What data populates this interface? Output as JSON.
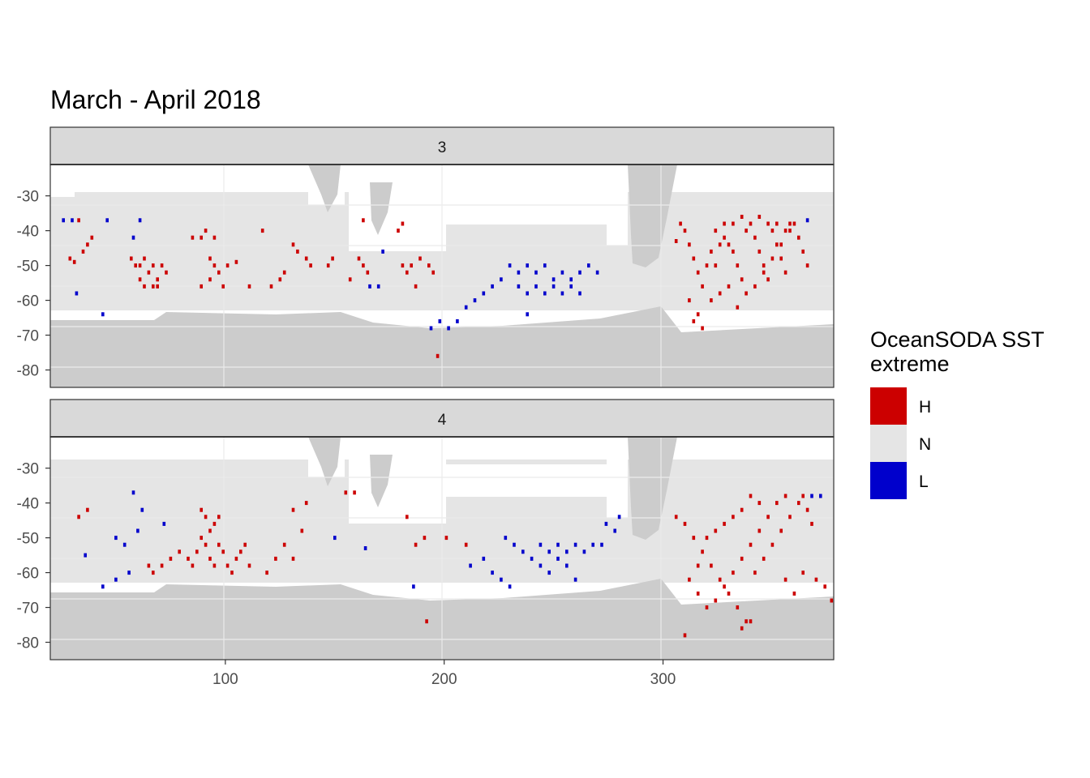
{
  "chart_data": {
    "type": "heatmap",
    "title": "March - April 2018",
    "xlabel": "",
    "ylabel": "",
    "xlim": [
      20,
      378
    ],
    "ylim": [
      -85,
      -21
    ],
    "x_ticks": [
      100,
      200,
      300
    ],
    "y_ticks": [
      -30,
      -40,
      -50,
      -60,
      -70,
      -80
    ],
    "grid": true,
    "legend": {
      "title": "OceanSODA SST extreme",
      "position": "right",
      "categories": [
        {
          "label": "H",
          "color": "#cc0000"
        },
        {
          "label": "N",
          "color": "#e5e5e5"
        },
        {
          "label": "L",
          "color": "#0000cc"
        }
      ]
    },
    "panels": [
      {
        "label": "3",
        "cells_H": [
          [
            33,
            -37
          ],
          [
            35,
            -46
          ],
          [
            37,
            -44
          ],
          [
            39,
            -42
          ],
          [
            29,
            -48
          ],
          [
            31,
            -49
          ],
          [
            57,
            -48
          ],
          [
            59,
            -50
          ],
          [
            61,
            -50
          ],
          [
            63,
            -48
          ],
          [
            65,
            -52
          ],
          [
            67,
            -50
          ],
          [
            69,
            -54
          ],
          [
            71,
            -50
          ],
          [
            73,
            -52
          ],
          [
            61,
            -54
          ],
          [
            63,
            -56
          ],
          [
            67,
            -56
          ],
          [
            69,
            -56
          ],
          [
            85,
            -42
          ],
          [
            89,
            -42
          ],
          [
            91,
            -40
          ],
          [
            95,
            -42
          ],
          [
            93,
            -48
          ],
          [
            95,
            -50
          ],
          [
            97,
            -52
          ],
          [
            99,
            -56
          ],
          [
            101,
            -50
          ],
          [
            105,
            -49
          ],
          [
            89,
            -56
          ],
          [
            93,
            -54
          ],
          [
            111,
            -56
          ],
          [
            121,
            -56
          ],
          [
            125,
            -54
          ],
          [
            127,
            -52
          ],
          [
            117,
            -40
          ],
          [
            131,
            -44
          ],
          [
            133,
            -46
          ],
          [
            137,
            -48
          ],
          [
            139,
            -50
          ],
          [
            147,
            -50
          ],
          [
            149,
            -48
          ],
          [
            161,
            -48
          ],
          [
            163,
            -50
          ],
          [
            165,
            -52
          ],
          [
            157,
            -54
          ],
          [
            181,
            -50
          ],
          [
            183,
            -52
          ],
          [
            185,
            -50
          ],
          [
            187,
            -56
          ],
          [
            189,
            -48
          ],
          [
            193,
            -50
          ],
          [
            195,
            -52
          ],
          [
            179,
            -40
          ],
          [
            181,
            -38
          ],
          [
            197,
            -76
          ],
          [
            163,
            -37
          ],
          [
            306,
            -43
          ],
          [
            308,
            -38
          ],
          [
            310,
            -40
          ],
          [
            312,
            -44
          ],
          [
            314,
            -48
          ],
          [
            316,
            -52
          ],
          [
            318,
            -56
          ],
          [
            320,
            -50
          ],
          [
            322,
            -46
          ],
          [
            324,
            -50
          ],
          [
            326,
            -44
          ],
          [
            328,
            -42
          ],
          [
            330,
            -44
          ],
          [
            332,
            -46
          ],
          [
            334,
            -50
          ],
          [
            336,
            -54
          ],
          [
            338,
            -40
          ],
          [
            340,
            -38
          ],
          [
            342,
            -42
          ],
          [
            344,
            -46
          ],
          [
            346,
            -50
          ],
          [
            348,
            -54
          ],
          [
            350,
            -40
          ],
          [
            352,
            -44
          ],
          [
            354,
            -48
          ],
          [
            356,
            -52
          ],
          [
            358,
            -40
          ],
          [
            360,
            -38
          ],
          [
            362,
            -42
          ],
          [
            364,
            -46
          ],
          [
            366,
            -50
          ],
          [
            314,
            -66
          ],
          [
            318,
            -68
          ],
          [
            322,
            -60
          ],
          [
            326,
            -58
          ],
          [
            330,
            -56
          ],
          [
            334,
            -62
          ],
          [
            338,
            -58
          ],
          [
            342,
            -56
          ],
          [
            346,
            -52
          ],
          [
            350,
            -48
          ],
          [
            354,
            -44
          ],
          [
            356,
            -40
          ],
          [
            358,
            -38
          ],
          [
            312,
            -60
          ],
          [
            316,
            -64
          ],
          [
            348,
            -38
          ],
          [
            352,
            -38
          ],
          [
            324,
            -40
          ],
          [
            328,
            -38
          ],
          [
            332,
            -38
          ],
          [
            336,
            -36
          ],
          [
            344,
            -36
          ]
        ],
        "cells_L": [
          [
            26,
            -37
          ],
          [
            30,
            -37
          ],
          [
            46,
            -37
          ],
          [
            61,
            -37
          ],
          [
            58,
            -42
          ],
          [
            32,
            -58
          ],
          [
            44,
            -64
          ],
          [
            166,
            -56
          ],
          [
            170,
            -56
          ],
          [
            172,
            -46
          ],
          [
            230,
            -50
          ],
          [
            234,
            -52
          ],
          [
            238,
            -50
          ],
          [
            242,
            -52
          ],
          [
            246,
            -50
          ],
          [
            250,
            -54
          ],
          [
            254,
            -52
          ],
          [
            258,
            -54
          ],
          [
            262,
            -52
          ],
          [
            266,
            -50
          ],
          [
            270,
            -52
          ],
          [
            234,
            -56
          ],
          [
            238,
            -58
          ],
          [
            242,
            -56
          ],
          [
            246,
            -58
          ],
          [
            250,
            -56
          ],
          [
            254,
            -58
          ],
          [
            258,
            -56
          ],
          [
            262,
            -58
          ],
          [
            226,
            -54
          ],
          [
            222,
            -56
          ],
          [
            218,
            -58
          ],
          [
            214,
            -60
          ],
          [
            210,
            -62
          ],
          [
            206,
            -66
          ],
          [
            202,
            -68
          ],
          [
            198,
            -66
          ],
          [
            194,
            -68
          ],
          [
            238,
            -64
          ],
          [
            366,
            -37
          ]
        ]
      },
      {
        "label": "4",
        "cells_H": [
          [
            33,
            -44
          ],
          [
            37,
            -42
          ],
          [
            65,
            -58
          ],
          [
            67,
            -60
          ],
          [
            71,
            -58
          ],
          [
            75,
            -56
          ],
          [
            79,
            -54
          ],
          [
            83,
            -56
          ],
          [
            85,
            -58
          ],
          [
            87,
            -54
          ],
          [
            89,
            -50
          ],
          [
            91,
            -52
          ],
          [
            93,
            -56
          ],
          [
            95,
            -58
          ],
          [
            97,
            -52
          ],
          [
            99,
            -54
          ],
          [
            101,
            -58
          ],
          [
            103,
            -60
          ],
          [
            105,
            -56
          ],
          [
            107,
            -54
          ],
          [
            109,
            -52
          ],
          [
            111,
            -58
          ],
          [
            89,
            -42
          ],
          [
            91,
            -44
          ],
          [
            93,
            -48
          ],
          [
            95,
            -46
          ],
          [
            97,
            -44
          ],
          [
            119,
            -60
          ],
          [
            123,
            -56
          ],
          [
            127,
            -52
          ],
          [
            131,
            -56
          ],
          [
            135,
            -48
          ],
          [
            137,
            -40
          ],
          [
            131,
            -42
          ],
          [
            155,
            -37
          ],
          [
            159,
            -37
          ],
          [
            187,
            -52
          ],
          [
            191,
            -50
          ],
          [
            183,
            -44
          ],
          [
            201,
            -50
          ],
          [
            210,
            -52
          ],
          [
            306,
            -44
          ],
          [
            310,
            -46
          ],
          [
            314,
            -50
          ],
          [
            318,
            -54
          ],
          [
            322,
            -58
          ],
          [
            326,
            -62
          ],
          [
            330,
            -66
          ],
          [
            334,
            -70
          ],
          [
            338,
            -74
          ],
          [
            342,
            -60
          ],
          [
            346,
            -56
          ],
          [
            350,
            -52
          ],
          [
            354,
            -48
          ],
          [
            358,
            -44
          ],
          [
            362,
            -40
          ],
          [
            364,
            -38
          ],
          [
            366,
            -42
          ],
          [
            368,
            -46
          ],
          [
            316,
            -66
          ],
          [
            320,
            -70
          ],
          [
            324,
            -68
          ],
          [
            328,
            -64
          ],
          [
            332,
            -60
          ],
          [
            336,
            -56
          ],
          [
            340,
            -52
          ],
          [
            344,
            -48
          ],
          [
            348,
            -44
          ],
          [
            352,
            -40
          ],
          [
            356,
            -38
          ],
          [
            340,
            -38
          ],
          [
            344,
            -40
          ],
          [
            336,
            -42
          ],
          [
            332,
            -44
          ],
          [
            328,
            -46
          ],
          [
            324,
            -48
          ],
          [
            320,
            -50
          ],
          [
            312,
            -62
          ],
          [
            316,
            -58
          ],
          [
            356,
            -62
          ],
          [
            360,
            -66
          ],
          [
            364,
            -60
          ],
          [
            370,
            -62
          ],
          [
            374,
            -64
          ],
          [
            377,
            -68
          ],
          [
            310,
            -78
          ],
          [
            336,
            -76
          ],
          [
            340,
            -74
          ],
          [
            192,
            -74
          ]
        ],
        "cells_L": [
          [
            58,
            -37
          ],
          [
            62,
            -42
          ],
          [
            50,
            -50
          ],
          [
            54,
            -52
          ],
          [
            36,
            -55
          ],
          [
            60,
            -48
          ],
          [
            56,
            -60
          ],
          [
            50,
            -62
          ],
          [
            44,
            -64
          ],
          [
            72,
            -46
          ],
          [
            150,
            -50
          ],
          [
            164,
            -53
          ],
          [
            228,
            -50
          ],
          [
            232,
            -52
          ],
          [
            236,
            -54
          ],
          [
            240,
            -56
          ],
          [
            244,
            -52
          ],
          [
            248,
            -54
          ],
          [
            252,
            -52
          ],
          [
            256,
            -54
          ],
          [
            260,
            -52
          ],
          [
            264,
            -54
          ],
          [
            268,
            -52
          ],
          [
            272,
            -52
          ],
          [
            244,
            -58
          ],
          [
            248,
            -60
          ],
          [
            252,
            -56
          ],
          [
            256,
            -58
          ],
          [
            260,
            -62
          ],
          [
            222,
            -60
          ],
          [
            226,
            -62
          ],
          [
            230,
            -64
          ],
          [
            218,
            -56
          ],
          [
            186,
            -64
          ],
          [
            274,
            -46
          ],
          [
            278,
            -48
          ],
          [
            280,
            -44
          ],
          [
            368,
            -38
          ],
          [
            372,
            -38
          ],
          [
            212,
            -58
          ]
        ]
      }
    ]
  }
}
